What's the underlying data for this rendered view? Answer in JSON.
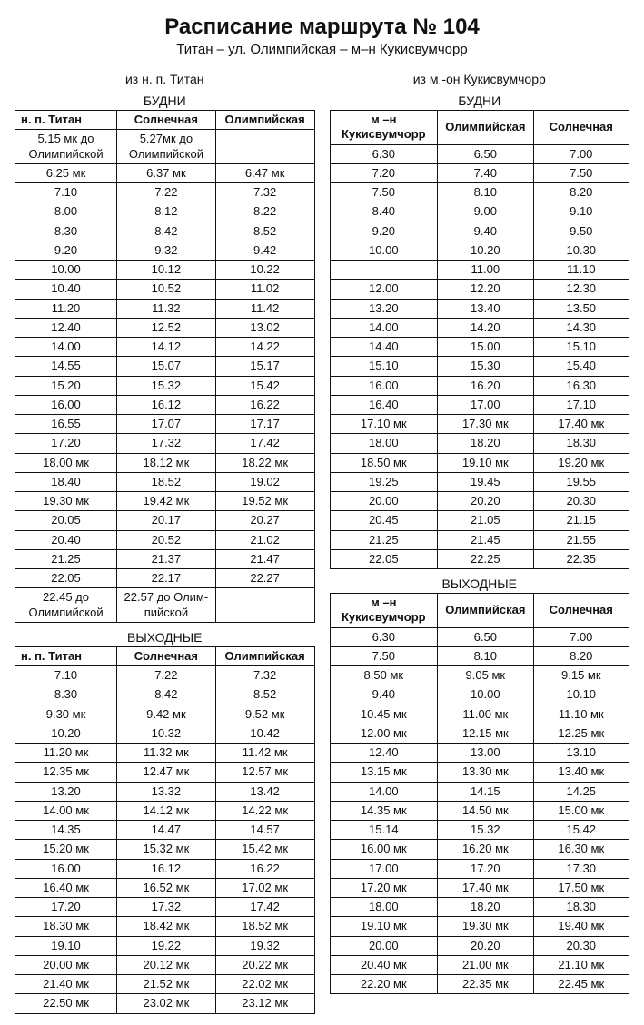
{
  "colors": {
    "bg": "#ffffff",
    "fg": "#111111",
    "border": "#111111"
  },
  "typography": {
    "title_fontsize": 24,
    "subtitle_fontsize": 15,
    "body_fontsize": 13
  },
  "header": {
    "title": "Расписание маршрута № 104",
    "subtitle": "Титан – ул. Олимпийская – м–н Кукисвумчорр"
  },
  "left": {
    "direction": "из н. п. Титан",
    "weekday_label": "БУДНИ",
    "weekend_label": "ВЫХОДНЫЕ",
    "columns": [
      "н. п. Титан",
      "Солнечная",
      "Олимпийская"
    ],
    "layout": {
      "col_widths": [
        "34%",
        "33%",
        "33%"
      ],
      "align": "center"
    },
    "weekday_rows": [
      [
        "5.15 мк до Олимпийской",
        "5.27мк до Олимпийской",
        ""
      ],
      [
        "6.25 мк",
        "6.37 мк",
        "6.47 мк"
      ],
      [
        "7.10",
        "7.22",
        "7.32"
      ],
      [
        "8.00",
        "8.12",
        "8.22"
      ],
      [
        "8.30",
        "8.42",
        "8.52"
      ],
      [
        "9.20",
        "9.32",
        "9.42"
      ],
      [
        "10.00",
        "10.12",
        "10.22"
      ],
      [
        "10.40",
        "10.52",
        "11.02"
      ],
      [
        "11.20",
        "11.32",
        "11.42"
      ],
      [
        "12.40",
        "12.52",
        "13.02"
      ],
      [
        "14.00",
        "14.12",
        "14.22"
      ],
      [
        "14.55",
        "15.07",
        "15.17"
      ],
      [
        "15.20",
        "15.32",
        "15.42"
      ],
      [
        "16.00",
        "16.12",
        "16.22"
      ],
      [
        "16.55",
        "17.07",
        "17.17"
      ],
      [
        "17.20",
        "17.32",
        "17.42"
      ],
      [
        "18.00 мк",
        "18.12 мк",
        "18.22 мк"
      ],
      [
        "18.40",
        "18.52",
        "19.02"
      ],
      [
        "19.30 мк",
        "19.42 мк",
        "19.52 мк"
      ],
      [
        "20.05",
        "20.17",
        "20.27"
      ],
      [
        "20.40",
        "20.52",
        "21.02"
      ],
      [
        "21.25",
        "21.37",
        "21.47"
      ],
      [
        "22.05",
        "22.17",
        "22.27"
      ],
      [
        "22.45 до Олимпийской",
        "22.57 до Олим-пийской",
        ""
      ]
    ],
    "weekend_rows": [
      [
        "7.10",
        "7.22",
        "7.32"
      ],
      [
        "8.30",
        "8.42",
        "8.52"
      ],
      [
        "9.30 мк",
        "9.42 мк",
        "9.52 мк"
      ],
      [
        "10.20",
        "10.32",
        "10.42"
      ],
      [
        "11.20 мк",
        "11.32 мк",
        "11.42 мк"
      ],
      [
        "12.35 мк",
        "12.47 мк",
        "12.57 мк"
      ],
      [
        "13.20",
        "13.32",
        "13.42"
      ],
      [
        "14.00 мк",
        "14.12 мк",
        "14.22 мк"
      ],
      [
        "14.35",
        "14.47",
        "14.57"
      ],
      [
        "15.20 мк",
        "15.32 мк",
        "15.42 мк"
      ],
      [
        "16.00",
        "16.12",
        "16.22"
      ],
      [
        "16.40 мк",
        "16.52 мк",
        "17.02 мк"
      ],
      [
        "17.20",
        "17.32",
        "17.42"
      ],
      [
        "18.30 мк",
        "18.42 мк",
        "18.52 мк"
      ],
      [
        "19.10",
        "19.22",
        "19.32"
      ],
      [
        "20.00 мк",
        "20.12 мк",
        "20.22 мк"
      ],
      [
        "21.40 мк",
        "21.52 мк",
        "22.02 мк"
      ],
      [
        "22.50 мк",
        "23.02 мк",
        "23.12 мк"
      ]
    ]
  },
  "right": {
    "direction": "из м -он Кукисвумчорр",
    "weekday_label": "БУДНИ",
    "weekend_label": "ВЫХОДНЫЕ",
    "columns": [
      "м –н Кукисвумчорр",
      "Олимпийская",
      "Солнечная"
    ],
    "layout": {
      "col_widths": [
        "36%",
        "32%",
        "32%"
      ],
      "align": "center"
    },
    "weekday_rows": [
      [
        "6.30",
        "6.50",
        "7.00"
      ],
      [
        "7.20",
        "7.40",
        "7.50"
      ],
      [
        "7.50",
        "8.10",
        "8.20"
      ],
      [
        "8.40",
        "9.00",
        "9.10"
      ],
      [
        "9.20",
        "9.40",
        "9.50"
      ],
      [
        "10.00",
        "10.20",
        "10.30"
      ],
      [
        "",
        "11.00",
        "11.10"
      ],
      [
        "12.00",
        "12.20",
        "12.30"
      ],
      [
        "13.20",
        "13.40",
        "13.50"
      ],
      [
        "14.00",
        "14.20",
        "14.30"
      ],
      [
        "14.40",
        "15.00",
        "15.10"
      ],
      [
        "15.10",
        "15.30",
        "15.40"
      ],
      [
        "16.00",
        "16.20",
        "16.30"
      ],
      [
        "16.40",
        "17.00",
        "17.10"
      ],
      [
        "17.10 мк",
        "17.30 мк",
        "17.40 мк"
      ],
      [
        "18.00",
        "18.20",
        "18.30"
      ],
      [
        "18.50 мк",
        "19.10 мк",
        "19.20 мк"
      ],
      [
        "19.25",
        "19.45",
        "19.55"
      ],
      [
        "20.00",
        "20.20",
        "20.30"
      ],
      [
        "20.45",
        "21.05",
        "21.15"
      ],
      [
        "21.25",
        "21.45",
        "21.55"
      ],
      [
        "22.05",
        "22.25",
        "22.35"
      ]
    ],
    "weekend_rows": [
      [
        "6.30",
        "6.50",
        "7.00"
      ],
      [
        "7.50",
        "8.10",
        "8.20"
      ],
      [
        "8.50 мк",
        "9.05 мк",
        "9.15 мк"
      ],
      [
        "9.40",
        "10.00",
        "10.10"
      ],
      [
        "10.45 мк",
        "11.00 мк",
        "11.10 мк"
      ],
      [
        "12.00 мк",
        "12.15 мк",
        "12.25 мк"
      ],
      [
        "12.40",
        "13.00",
        "13.10"
      ],
      [
        "13.15 мк",
        "13.30 мк",
        "13.40 мк"
      ],
      [
        "14.00",
        "14.15",
        "14.25"
      ],
      [
        "14.35 мк",
        "14.50 мк",
        "15.00 мк"
      ],
      [
        "15.14",
        "15.32",
        "15.42"
      ],
      [
        "16.00 мк",
        "16.20 мк",
        "16.30 мк"
      ],
      [
        "17.00",
        "17.20",
        "17.30"
      ],
      [
        "17.20 мк",
        "17.40 мк",
        "17.50 мк"
      ],
      [
        "18.00",
        "18.20",
        "18.30"
      ],
      [
        "19.10 мк",
        "19.30 мк",
        "19.40 мк"
      ],
      [
        "20.00",
        "20.20",
        "20.30"
      ],
      [
        "20.40 мк",
        "21.00 мк",
        "21.10 мк"
      ],
      [
        "22.20 мк",
        "22.35 мк",
        "22.45 мк"
      ]
    ]
  }
}
